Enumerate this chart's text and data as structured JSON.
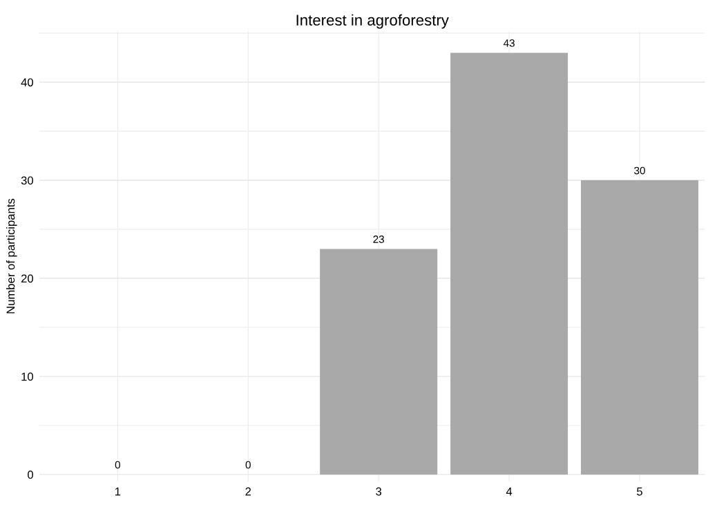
{
  "chart_data": {
    "type": "bar",
    "title": "Interest in agroforestry",
    "ylabel": "Number of participants",
    "categories": [
      "1",
      "2",
      "3",
      "4",
      "5"
    ],
    "values": [
      0,
      0,
      23,
      43,
      30
    ],
    "color": "#a9a9a9",
    "ylim": [
      -0.7,
      45.2
    ],
    "yticks": [
      0,
      {
        "value": 5,
        "label": null
      },
      10,
      {
        "value": 15,
        "label": null
      },
      20,
      {
        "value": 25,
        "label": null
      },
      30,
      {
        "value": 35,
        "label": null
      },
      40,
      {
        "value": 45,
        "label": null
      }
    ],
    "grid": true,
    "data_labels": true
  }
}
